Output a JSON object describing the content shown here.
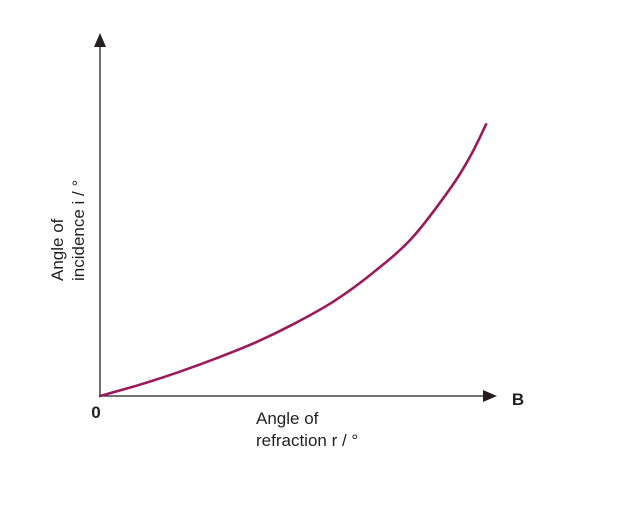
{
  "chart_data": {
    "type": "line",
    "title": "",
    "xlabel": [
      "Angle of",
      "refraction r / °"
    ],
    "ylabel": [
      "Angle of",
      "incidence i / °"
    ],
    "origin_label": "0",
    "x_axis_end_label": "B",
    "xlim": [
      0,
      1
    ],
    "ylim": [
      0,
      1
    ],
    "grid": false,
    "legend": "none",
    "series": [
      {
        "color": "#9b1b5a",
        "x": [
          0,
          0.1,
          0.2,
          0.3,
          0.4,
          0.5,
          0.6,
          0.7,
          0.8,
          0.9,
          0.95,
          0.99
        ],
        "y": [
          0,
          0.035,
          0.075,
          0.12,
          0.17,
          0.23,
          0.3,
          0.39,
          0.5,
          0.66,
          0.76,
          0.86
        ]
      }
    ]
  }
}
